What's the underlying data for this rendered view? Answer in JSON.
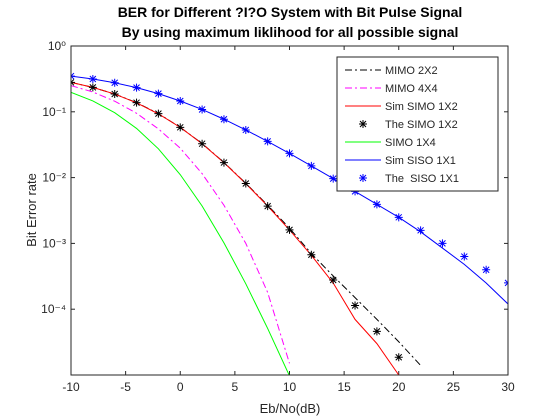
{
  "chart_data": {
    "type": "line",
    "title": [
      "BER for Different ?I?O System with Bit Pulse Signal",
      "By using maximum liklihood for all possible signal"
    ],
    "xlabel": "Eb/No(dB)",
    "ylabel": "Bit Error rate",
    "x": [
      -10,
      -8,
      -6,
      -4,
      -2,
      0,
      2,
      4,
      6,
      8,
      10,
      12,
      14,
      16,
      18,
      20,
      22,
      24,
      26,
      28,
      30
    ],
    "xlim": [
      -10,
      30
    ],
    "xticks": [
      -10,
      -5,
      0,
      5,
      10,
      15,
      20,
      25,
      30
    ],
    "ylim": [
      1e-05,
      1
    ],
    "log_y": true,
    "yticks": [
      {
        "value": 0.0001,
        "label": "10⁻⁴"
      },
      {
        "value": 0.001,
        "label": "10⁻³"
      },
      {
        "value": 0.01,
        "label": "10⁻²"
      },
      {
        "value": 0.1,
        "label": "10⁻¹"
      },
      {
        "value": 1,
        "label": "10⁰"
      }
    ],
    "legend": "upper right",
    "series": [
      {
        "name": "MIMO 2X2",
        "color": "#000000",
        "linestyle": "-.",
        "marker": null,
        "values": [
          0.28,
          0.235,
          0.186,
          0.138,
          0.094,
          0.058,
          0.033,
          0.017,
          0.0082,
          0.0038,
          0.0017,
          0.0007,
          0.00032,
          0.00015,
          7e-05,
          3.2e-05,
          1.4e-05,
          null,
          null,
          null,
          null
        ]
      },
      {
        "name": "MIMO 4X4",
        "color": "#ff00ff",
        "linestyle": "-.",
        "marker": null,
        "values": [
          0.25,
          0.2,
          0.145,
          0.095,
          0.055,
          0.028,
          0.0115,
          0.0038,
          0.001,
          0.00018,
          1.5e-05,
          null,
          null,
          null,
          null,
          null,
          null,
          null,
          null,
          null,
          null
        ]
      },
      {
        "name": "Sim SIMO 1X2",
        "color": "#ff0000",
        "linestyle": "-",
        "marker": null,
        "values": [
          0.28,
          0.235,
          0.186,
          0.137,
          0.093,
          0.058,
          0.0327,
          0.0169,
          0.0081,
          0.0037,
          0.0016,
          0.00066,
          0.00025,
          7e-05,
          3e-05,
          1e-05,
          null,
          null,
          null,
          null,
          null
        ]
      },
      {
        "name": "The SIMO 1X2",
        "color": "#000000",
        "linestyle": "none",
        "marker": "*",
        "values": [
          0.2804,
          0.2352,
          0.1865,
          0.1376,
          0.0937,
          0.0581,
          0.03276,
          0.01692,
          0.00813,
          0.00369,
          0.001603,
          0.000673,
          0.000278,
          0.0001138,
          4.6e-05,
          1.86e-05,
          null,
          null,
          null,
          null,
          null
        ]
      },
      {
        "name": "SIMO 1X4",
        "color": "#00ff00",
        "linestyle": "-",
        "marker": null,
        "values": [
          0.198,
          0.1464,
          0.097,
          0.0559,
          0.0274,
          0.0111,
          0.0037,
          0.00102,
          0.000243,
          5.1e-05,
          9.7e-06,
          null,
          null,
          null,
          null,
          null,
          null,
          null,
          null,
          null,
          null
        ]
      },
      {
        "name": "Sim SISO 1X1",
        "color": "#0000ff",
        "linestyle": "-",
        "marker": null,
        "values": [
          0.349,
          0.315,
          0.276,
          0.233,
          0.189,
          0.146,
          0.1085,
          0.0771,
          0.053,
          0.0355,
          0.0233,
          0.01505,
          0.00966,
          0.00617,
          0.00392,
          0.00249,
          0.0015,
          0.00085,
          0.00048,
          0.00025,
          0.00012
        ]
      },
      {
        "name": "The  SISO 1X1",
        "color": "#0000ff",
        "linestyle": "none",
        "marker": "*",
        "values": [
          0.349,
          0.315,
          0.276,
          0.233,
          0.189,
          0.146,
          0.1085,
          0.0771,
          0.053,
          0.0355,
          0.0233,
          0.01505,
          0.00966,
          0.00617,
          0.00392,
          0.00249,
          0.00158,
          0.001,
          0.000631,
          0.000398,
          0.000251
        ]
      }
    ]
  }
}
